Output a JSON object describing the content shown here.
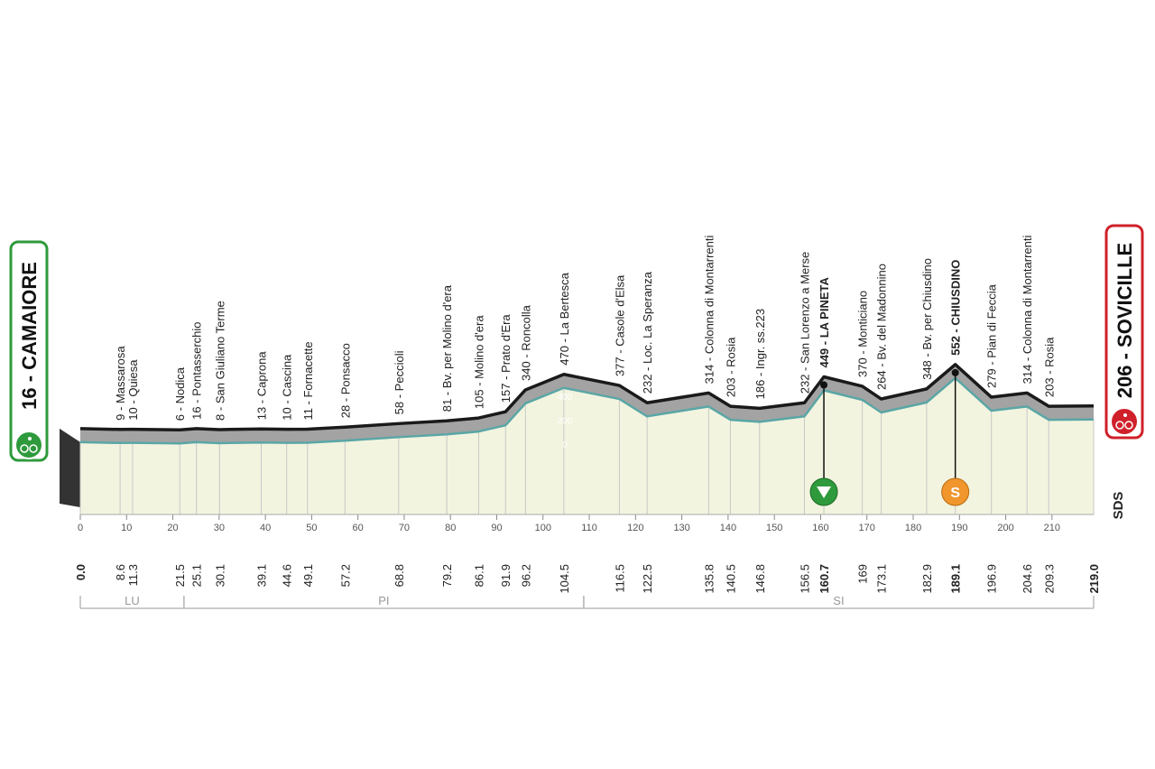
{
  "chart_data": {
    "type": "profile",
    "xlim": [
      0,
      219
    ],
    "xticks": [
      0,
      10,
      20,
      30,
      40,
      50,
      60,
      70,
      80,
      90,
      100,
      110,
      120,
      130,
      140,
      150,
      160,
      170,
      180,
      190,
      200,
      210
    ],
    "ylim": [
      0,
      400
    ],
    "yticks": [
      0,
      200,
      400
    ],
    "logo": "SDS",
    "sprint_label": "S",
    "waypoints": [
      {
        "label": "16 - CAMAIORE",
        "altitude": 16,
        "km": {
          "value": 0,
          "label": "0.0"
        },
        "badge": "start"
      },
      {
        "label": "9 - Massarosa",
        "altitude": 9,
        "km": 8.6
      },
      {
        "label": "10 - Quiesa",
        "altitude": 10,
        "km": 11.3
      },
      {
        "label": "6 - Nodica",
        "altitude": 6,
        "km": 21.5
      },
      {
        "label": "16 - Pontasserchio",
        "altitude": 16,
        "km": 25.1
      },
      {
        "label": "8 - San Giuliano Terme",
        "altitude": 8,
        "km": 30.1
      },
      {
        "label": "13 - Caprona",
        "altitude": 13,
        "km": 39.1
      },
      {
        "label": "10 - Cascina",
        "altitude": 10,
        "km": 44.6
      },
      {
        "label": "11 - Fornacette",
        "altitude": 11,
        "km": 49.1
      },
      {
        "label": "28 - Ponsacco",
        "altitude": 28,
        "km": 57.2
      },
      {
        "label": "58 - Peccioli",
        "altitude": 58,
        "km": 68.8
      },
      {
        "label": "81 - Bv. per Molino d'era",
        "altitude": 81,
        "km": 79.2
      },
      {
        "label": "105 - Molino d'era",
        "altitude": 105,
        "km": 86.1
      },
      {
        "label": "157 - Prato d'Era",
        "altitude": 157,
        "km": 91.9
      },
      {
        "label": "340 - Roncolla",
        "altitude": 340,
        "km": 96.2
      },
      {
        "label": "470 - La Bertesca",
        "altitude": 470,
        "km": 104.5
      },
      {
        "label": "377 - Casole d'Elsa",
        "altitude": 377,
        "km": 116.5
      },
      {
        "label": "232 - Loc. La Speranza",
        "altitude": 232,
        "km": 122.5
      },
      {
        "label": "314 - Colonna di Montarrenti",
        "altitude": 314,
        "km": 135.8
      },
      {
        "label": "203 - Rosia",
        "altitude": 203,
        "km": 140.5
      },
      {
        "label": "186 - Ingr. ss.223",
        "altitude": 186,
        "km": 146.8
      },
      {
        "label": "232 - San Lorenzo a Merse",
        "altitude": 232,
        "km": 156.5
      },
      {
        "label": "449 - LA PINETA",
        "altitude": 449,
        "km": 160.7,
        "highlight": true,
        "marker": "kom"
      },
      {
        "label": "370 - Monticiano",
        "altitude": 370,
        "km": 169.0
      },
      {
        "label": "264 - Bv. del Madonnino",
        "altitude": 264,
        "km": 173.1
      },
      {
        "label": "348 - Bv. per Chiusdino",
        "altitude": 348,
        "km": 182.9
      },
      {
        "label": "552 - CHIUSDINO",
        "altitude": 552,
        "km": 189.1,
        "highlight": true,
        "marker": "sprint"
      },
      {
        "label": "279 - Pian di Feccia",
        "altitude": 279,
        "km": 196.9
      },
      {
        "label": "314 - Colonna di Montarrenti",
        "altitude": 314,
        "km": 204.6
      },
      {
        "label": "203 - Rosia",
        "altitude": 203,
        "km": 209.3
      },
      {
        "label": "206 - SOVICILLE",
        "altitude": 206,
        "km": {
          "value": 219,
          "label": "219.0"
        },
        "badge": "finish"
      }
    ],
    "regions": [
      {
        "name": "LU",
        "start": 0,
        "end": 22.4
      },
      {
        "name": "PI",
        "start": 22.4,
        "end": 108.8
      },
      {
        "name": "SI",
        "start": 108.8,
        "end": 219
      }
    ]
  }
}
